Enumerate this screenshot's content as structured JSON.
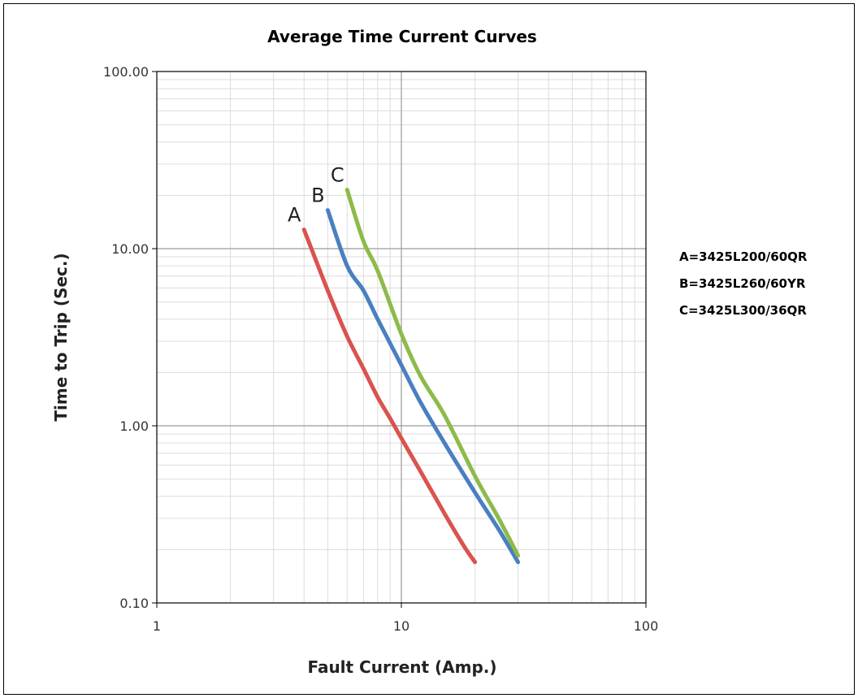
{
  "chart_data": {
    "type": "line",
    "title": "Average Time Current Curves",
    "xlabel": "Fault Current (Amp.)",
    "ylabel": "Time to Trip (Sec.)",
    "xscale": "log",
    "yscale": "log",
    "xlim": [
      1,
      100
    ],
    "ylim": [
      0.1,
      100
    ],
    "grid": true,
    "legend": "right",
    "x_ticks": [
      "1",
      "10",
      "100"
    ],
    "y_ticks": [
      "0.10",
      "1.00",
      "10.00",
      "100.00"
    ],
    "series": [
      {
        "name": "A",
        "color": "#d9534f",
        "x": [
          4.0,
          5.0,
          6.0,
          7.0,
          8.0,
          9.0,
          10.0,
          12.0,
          15.0,
          18.0,
          20.0
        ],
        "y": [
          12.8,
          5.8,
          3.2,
          2.1,
          1.45,
          1.1,
          0.85,
          0.55,
          0.32,
          0.21,
          0.17
        ]
      },
      {
        "name": "B",
        "color": "#4a7fc1",
        "x": [
          5.0,
          6.0,
          7.0,
          8.0,
          10.0,
          12.0,
          15.0,
          20.0,
          25.0,
          30.0
        ],
        "y": [
          16.5,
          8.0,
          5.8,
          4.0,
          2.2,
          1.35,
          0.8,
          0.42,
          0.26,
          0.17
        ]
      },
      {
        "name": "C",
        "color": "#8dbb4a",
        "x": [
          6.0,
          7.0,
          8.0,
          10.0,
          12.0,
          15.0,
          20.0,
          25.0,
          30.0
        ],
        "y": [
          21.5,
          11.0,
          7.5,
          3.3,
          1.9,
          1.15,
          0.52,
          0.3,
          0.185
        ]
      }
    ],
    "legend_entries": [
      "A=3425L200/60QR",
      "B=3425L260/60YR",
      "C=3425L300/36QR"
    ]
  }
}
